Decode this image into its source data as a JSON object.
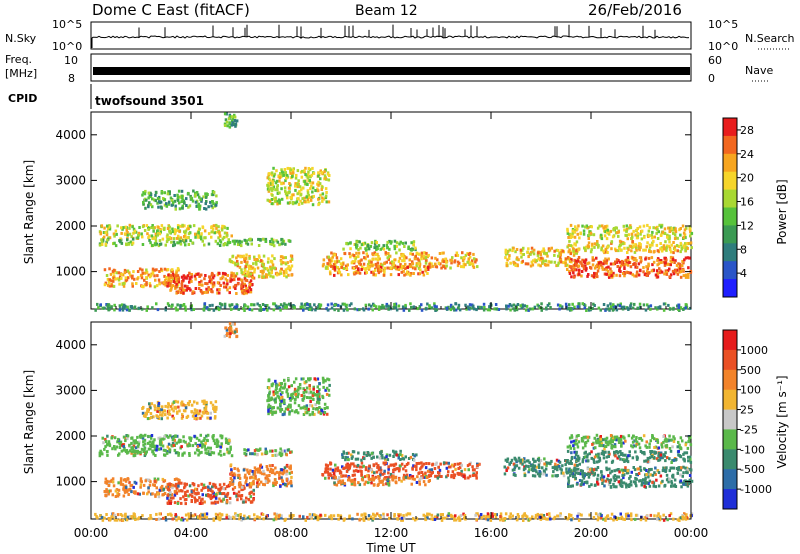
{
  "header": {
    "station": "Dome C East (fitACF)",
    "beam": "Beam 12",
    "date": "26/Feb/2016"
  },
  "status_panels": {
    "nsky_label": "N.Sky",
    "nsky_ticks": [
      "10^5",
      "10^0"
    ],
    "nsearch_label": "N.Search",
    "nsearch_ticks": [
      "10^5",
      "10^0"
    ],
    "freq_label_line1": "Freq.",
    "freq_label_line2": "[MHz]",
    "freq_ticks": [
      "10",
      "8"
    ],
    "nave_label": "Nave",
    "nave_ticks": [
      "60",
      "0"
    ],
    "cpid_label": "CPID",
    "cpid_value": "twofsound 3501"
  },
  "chart_data": [
    {
      "type": "heatmap",
      "name": "power",
      "ylabel": "Slant Range [km]",
      "xlabel": "Time UT",
      "x_ticks": [
        "00:00",
        "04:00",
        "08:00",
        "12:00",
        "16:00",
        "20:00",
        "00:00"
      ],
      "x_range_hours": [
        0,
        24
      ],
      "y_ticks": [
        1000,
        2000,
        3000,
        4000
      ],
      "y_range_km": [
        180,
        4500
      ],
      "colorbar": {
        "label": "Power [dB]",
        "ticks": [
          4,
          8,
          12,
          16,
          20,
          24,
          28
        ],
        "range": [
          0,
          30
        ],
        "colors": [
          "#1f1fff",
          "#2a55c8",
          "#2f7d7d",
          "#3b9a53",
          "#56c23b",
          "#a8d832",
          "#f6d52a",
          "#f7a51f",
          "#f2671f",
          "#e81d1d"
        ]
      },
      "echo_regions": [
        {
          "t0": 0.3,
          "t1": 5.6,
          "r0": 1750,
          "r1": 2050,
          "v": 18
        },
        {
          "t0": 0.3,
          "t1": 8.0,
          "r0": 1600,
          "r1": 1750,
          "v": 14
        },
        {
          "t0": 2.0,
          "t1": 5.0,
          "r0": 2400,
          "r1": 2800,
          "v": 12
        },
        {
          "t0": 0.5,
          "t1": 3.5,
          "r0": 700,
          "r1": 1100,
          "v": 22
        },
        {
          "t0": 3.0,
          "t1": 6.5,
          "r0": 550,
          "r1": 1000,
          "v": 26
        },
        {
          "t0": 5.5,
          "t1": 8.0,
          "r0": 900,
          "r1": 1400,
          "v": 20
        },
        {
          "t0": 7.0,
          "t1": 9.5,
          "r0": 2500,
          "r1": 3300,
          "v": 18
        },
        {
          "t0": 9.2,
          "t1": 15.5,
          "r0": 1100,
          "r1": 1450,
          "v": 22
        },
        {
          "t0": 9.5,
          "t1": 13.5,
          "r0": 950,
          "r1": 1150,
          "v": 24
        },
        {
          "t0": 10.0,
          "t1": 13.0,
          "r0": 1500,
          "r1": 1700,
          "v": 14
        },
        {
          "t0": 16.5,
          "t1": 19.5,
          "r0": 1150,
          "r1": 1550,
          "v": 20
        },
        {
          "t0": 19.0,
          "t1": 24.0,
          "r0": 900,
          "r1": 1350,
          "v": 26
        },
        {
          "t0": 19.0,
          "t1": 24.0,
          "r0": 1450,
          "r1": 1700,
          "v": 20
        },
        {
          "t0": 19.0,
          "t1": 24.0,
          "r0": 1750,
          "r1": 2050,
          "v": 18
        },
        {
          "t0": 5.3,
          "t1": 5.8,
          "r0": 4200,
          "r1": 4500,
          "v": 12
        },
        {
          "t0": 0.1,
          "t1": 24.0,
          "r0": 180,
          "r1": 330,
          "v": 10
        }
      ]
    },
    {
      "type": "heatmap",
      "name": "velocity",
      "ylabel": "Slant Range [km]",
      "xlabel": "Time UT",
      "x_ticks": [
        "00:00",
        "04:00",
        "08:00",
        "12:00",
        "16:00",
        "20:00",
        "00:00"
      ],
      "x_range_hours": [
        0,
        24
      ],
      "y_ticks": [
        1000,
        2000,
        3000,
        4000
      ],
      "y_range_km": [
        180,
        4500
      ],
      "colorbar": {
        "label": "Velocity [m s⁻¹]",
        "ticks": [
          "1000",
          "500",
          "100",
          "25",
          "-25",
          "-100",
          "-500",
          "-1000"
        ],
        "colors": [
          "#1f2fd8",
          "#2d6da8",
          "#3a8a6e",
          "#5ab84a",
          "#c8c8c8",
          "#f1b531",
          "#f2832a",
          "#ea5024",
          "#e61b1b"
        ]
      },
      "echo_regions": [
        {
          "t0": 0.3,
          "t1": 5.6,
          "r0": 1750,
          "r1": 2050,
          "v": "25"
        },
        {
          "t0": 0.3,
          "t1": 8.0,
          "r0": 1600,
          "r1": 1750,
          "v": "25"
        },
        {
          "t0": 2.0,
          "t1": 5.0,
          "r0": 2400,
          "r1": 2800,
          "v": "-25"
        },
        {
          "t0": 0.5,
          "t1": 3.5,
          "r0": 700,
          "r1": 1100,
          "v": "-100"
        },
        {
          "t0": 3.0,
          "t1": 6.5,
          "r0": 550,
          "r1": 1000,
          "v": "-500"
        },
        {
          "t0": 5.5,
          "t1": 8.0,
          "r0": 900,
          "r1": 1400,
          "v": "-100"
        },
        {
          "t0": 7.0,
          "t1": 9.5,
          "r0": 2500,
          "r1": 3300,
          "v": "25"
        },
        {
          "t0": 9.2,
          "t1": 15.5,
          "r0": 1100,
          "r1": 1450,
          "v": "-500"
        },
        {
          "t0": 9.5,
          "t1": 13.5,
          "r0": 950,
          "r1": 1150,
          "v": "-100"
        },
        {
          "t0": 10.0,
          "t1": 13.0,
          "r0": 1500,
          "r1": 1700,
          "v": "100"
        },
        {
          "t0": 16.5,
          "t1": 19.5,
          "r0": 1150,
          "r1": 1550,
          "v": "100"
        },
        {
          "t0": 19.0,
          "t1": 24.0,
          "r0": 900,
          "r1": 1350,
          "v": "100"
        },
        {
          "t0": 19.0,
          "t1": 24.0,
          "r0": 1450,
          "r1": 1700,
          "v": "100"
        },
        {
          "t0": 19.0,
          "t1": 24.0,
          "r0": 1750,
          "r1": 2050,
          "v": "25"
        },
        {
          "t0": 5.3,
          "t1": 5.8,
          "r0": 4200,
          "r1": 4500,
          "v": "-100"
        },
        {
          "t0": 0.1,
          "t1": 24.0,
          "r0": 180,
          "r1": 330,
          "v": "-25"
        }
      ]
    }
  ]
}
